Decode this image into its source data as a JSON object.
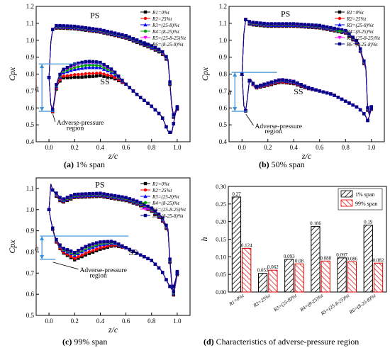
{
  "captions": {
    "a_letter": "(a)",
    "a_text": " 1% span",
    "b_letter": "(b)",
    "b_text": " 50% span",
    "c_letter": "(c)",
    "c_text": " 99% span",
    "d_letter": "(d)",
    "d_text": " Characteristics of adverse-pressure region"
  },
  "chart_data": [
    {
      "id": "a",
      "type": "line",
      "xlabel": "z/c",
      "ylabel": "Cpx",
      "xlim": [
        -0.1,
        1.1
      ],
      "ylim": [
        0.4,
        1.2
      ],
      "xticks": [
        "0.0",
        "0.2",
        "0.4",
        "0.6",
        "0.8",
        "1.0"
      ],
      "yticks": [
        "0.4",
        "0.5",
        "0.6",
        "0.7",
        "0.8",
        "0.9",
        "1.0",
        "1.1",
        "1.2"
      ],
      "labels": {
        "ps": "PS",
        "ss": "SS",
        "h": "h",
        "adverse": [
          "Adverse-pressure",
          "region"
        ]
      },
      "h_lines": [
        0.86,
        0.58
      ],
      "legend": [
        "R1=0%t",
        "R2=25%t",
        "R3=(25-8)%t",
        "R4=(8-25)%t",
        "R5=(25-8-25)%t",
        "R6=(8-25-8)%t"
      ],
      "series_colors": [
        "#000000",
        "#ff0000",
        "#0000ff",
        "#00a000",
        "#ff00ff",
        "#00008b"
      ]
    },
    {
      "id": "b",
      "type": "line",
      "xlabel": "z/c",
      "ylabel": "Cpx",
      "xlim": [
        -0.1,
        1.1
      ],
      "ylim": [
        0.4,
        1.2
      ],
      "xticks": [
        "0.0",
        "0.2",
        "0.4",
        "0.6",
        "0.8",
        "1.0"
      ],
      "yticks": [
        "0.4",
        "0.5",
        "0.6",
        "0.7",
        "0.8",
        "0.9",
        "1.0",
        "1.1",
        "1.2"
      ],
      "labels": {
        "ps": "PS",
        "ss": "SS",
        "h": "h",
        "adverse": [
          "Adverse-pressure",
          "region"
        ]
      },
      "h_lines": [
        0.81,
        0.58
      ],
      "legend": [
        "R1=0%t",
        "R2=25%t",
        "R3=(25-8)%t",
        "R4=(8-25)%t",
        "R5=(25-8-25)%t",
        "R6=(8-25-8)%t"
      ],
      "series_colors": [
        "#000000",
        "#ff0000",
        "#0000ff",
        "#00a000",
        "#ff00ff",
        "#00008b"
      ]
    },
    {
      "id": "c",
      "type": "line",
      "xlabel": "z/c",
      "ylabel": "Cpx",
      "xlim": [
        -0.1,
        1.1
      ],
      "ylim": [
        0.5,
        1.15
      ],
      "xticks": [
        "0.0",
        "0.2",
        "0.4",
        "0.6",
        "0.8",
        "1.0"
      ],
      "yticks": [
        "0.5",
        "0.6",
        "0.7",
        "0.8",
        "0.9",
        "1.0",
        "1.1"
      ],
      "labels": {
        "ps": "PS",
        "ss": "SS",
        "h": "h",
        "adverse": [
          "Adverse-pressure",
          "region"
        ]
      },
      "h_lines": [
        0.875,
        0.765
      ],
      "legend": [
        "R1=0%t",
        "R2=25%t",
        "R3=(25-8)%t",
        "R4=(8-25)%t",
        "R5=(25-8-25)%t",
        "R6=(8-25-8)%t"
      ],
      "series_colors": [
        "#000000",
        "#ff0000",
        "#0000ff",
        "#00a000",
        "#ff00ff",
        "#00008b"
      ]
    },
    {
      "id": "d",
      "type": "bar",
      "ylabel": "h",
      "ylim": [
        0,
        0.3
      ],
      "yticks": [
        "0.00",
        "0.05",
        "0.10",
        "0.15",
        "0.20",
        "0.25",
        "0.30"
      ],
      "categories": [
        "R1=0%t",
        "R2=25%t",
        "R3=(25-8)%t",
        "R4=(8-25)%t",
        "R5=(25-8-25)%t",
        "R6=(8-25-8)%t"
      ],
      "series": [
        {
          "name": "1% span",
          "values": [
            0.27,
            0.053,
            0.093,
            0.186,
            0.097,
            0.19
          ],
          "labels": [
            "0.27",
            "0.053",
            "0.093",
            "0.186",
            "0.097",
            "0.19"
          ],
          "color": "#000000"
        },
        {
          "name": "99% span",
          "values": [
            0.124,
            0.062,
            0.08,
            0.088,
            0.086,
            0.082
          ],
          "labels": [
            "0.124",
            "0.062",
            "0.08",
            "0.088",
            "0.086",
            "0.082"
          ],
          "color": "#ff0000"
        }
      ],
      "legend_position": "top-right"
    }
  ]
}
